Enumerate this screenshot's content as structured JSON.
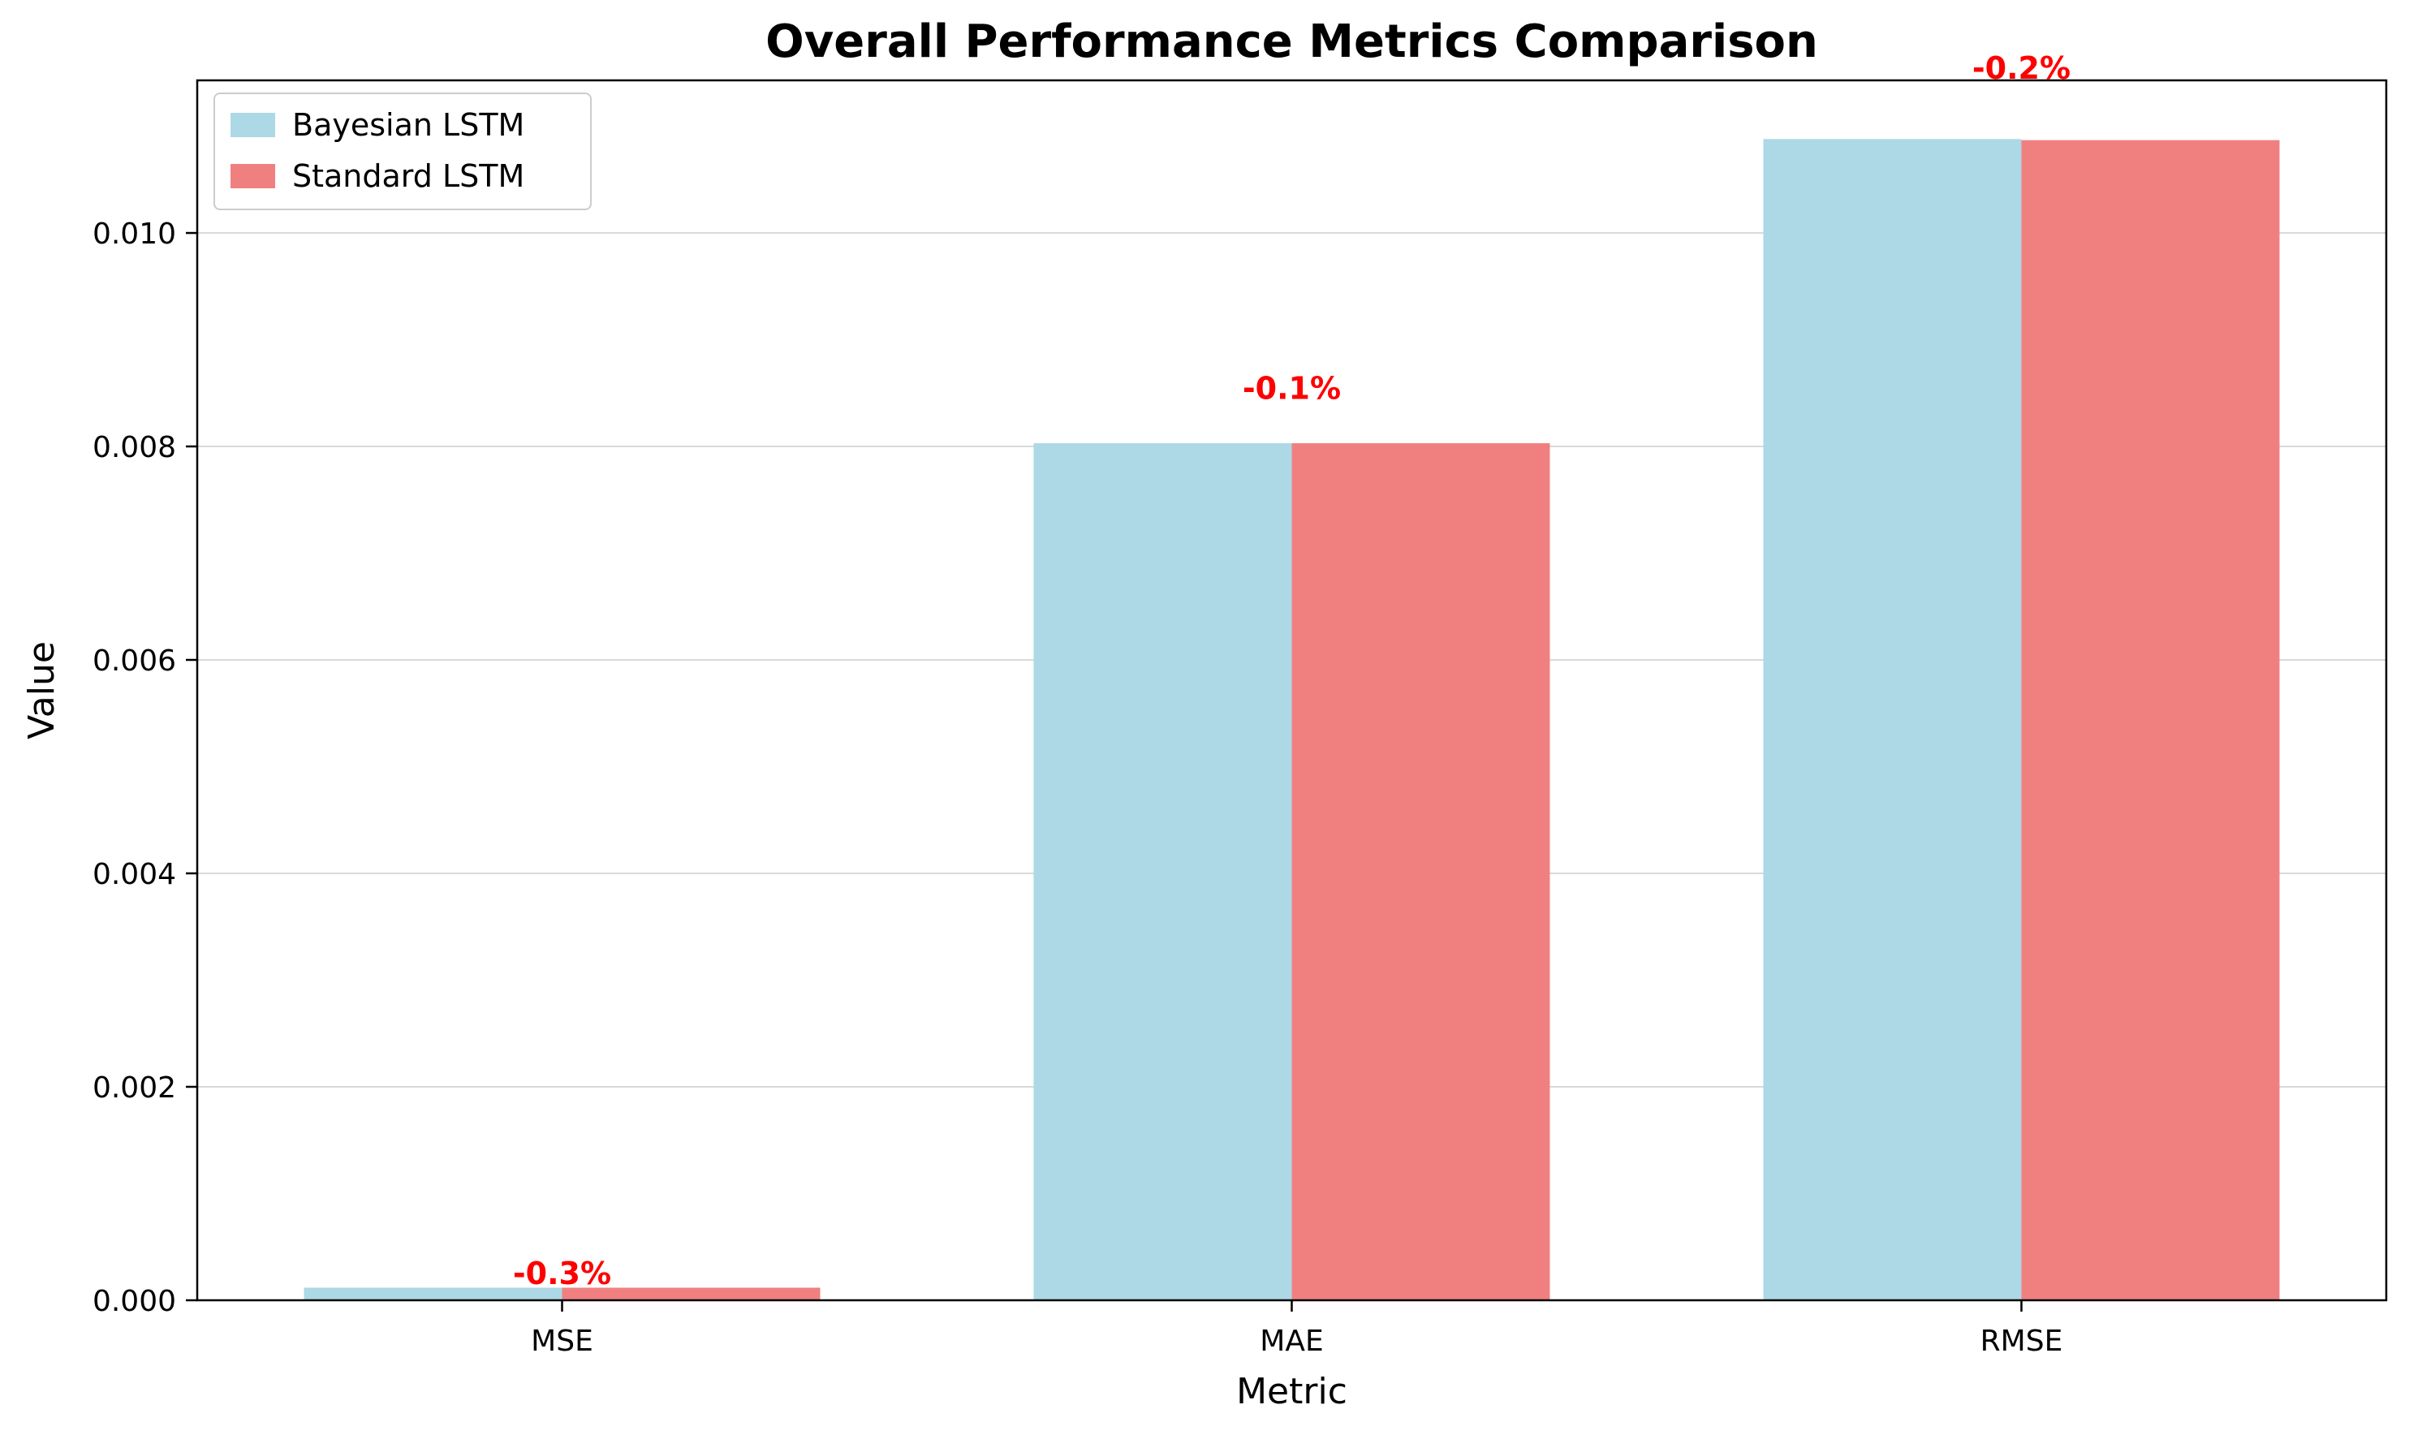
{
  "chart_data": {
    "type": "bar",
    "title": "Overall Performance Metrics Comparison",
    "xlabel": "Metric",
    "ylabel": "Value",
    "categories": [
      "MSE",
      "MAE",
      "RMSE"
    ],
    "series": [
      {
        "name": "Bayesian LSTM",
        "color": "#add8e6",
        "values": [
          0.000118,
          0.00803,
          0.01088
        ]
      },
      {
        "name": "Standard LSTM",
        "color": "#f08080",
        "values": [
          0.000118,
          0.00803,
          0.01087
        ]
      }
    ],
    "annotations": [
      {
        "category": "MSE",
        "text": "-0.3%",
        "y": 0.00026,
        "color": "#ff0000"
      },
      {
        "category": "MAE",
        "text": "-0.1%",
        "y": 0.00855,
        "color": "#ff0000"
      },
      {
        "category": "RMSE",
        "text": "-0.2%",
        "y": 0.01155,
        "color": "#ff0000"
      }
    ],
    "ylim": [
      0,
      0.01143
    ],
    "yticks": [
      0,
      0.002,
      0.004,
      0.006,
      0.008,
      0.01
    ],
    "ytick_labels": [
      "0.000",
      "0.002",
      "0.004",
      "0.006",
      "0.008",
      "0.010"
    ],
    "grid": "horizontal",
    "legend_position": "top-left"
  }
}
